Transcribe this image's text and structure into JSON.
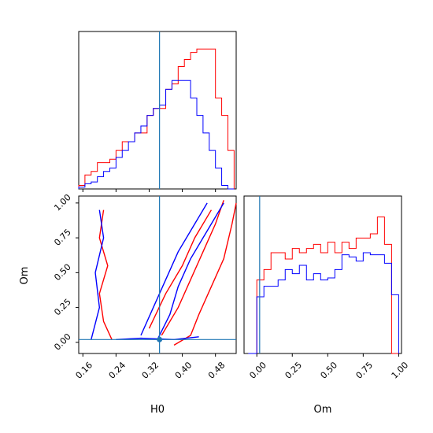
{
  "chart_data": [
    {
      "type": "histogram",
      "panel": "top-left",
      "parameter": "H0",
      "xlim": [
        0.15,
        0.53
      ],
      "bins": [
        0.15,
        0.165,
        0.18,
        0.195,
        0.21,
        0.225,
        0.24,
        0.255,
        0.27,
        0.285,
        0.3,
        0.315,
        0.33,
        0.345,
        0.36,
        0.375,
        0.39,
        0.405,
        0.42,
        0.435,
        0.45,
        0.465,
        0.48,
        0.495,
        0.51,
        0.525
      ],
      "series": [
        {
          "color": "#ff0000",
          "values": [
            2,
            8,
            10,
            15,
            15,
            17,
            22,
            27,
            27,
            32,
            32,
            42,
            46,
            46,
            57,
            60,
            70,
            74,
            78,
            80,
            80,
            80,
            52,
            42,
            22
          ]
        },
        {
          "color": "#0000ff",
          "values": [
            1,
            3,
            4,
            7,
            10,
            12,
            18,
            22,
            27,
            32,
            36,
            42,
            46,
            48,
            57,
            62,
            62,
            62,
            52,
            42,
            32,
            22,
            12,
            2,
            0
          ]
        }
      ],
      "vline": {
        "x": 0.345,
        "color": "#1f77b4"
      },
      "ylim": [
        0,
        90
      ]
    },
    {
      "type": "contour",
      "panel": "bottom-left",
      "xlabel": "H0",
      "ylabel": "Om",
      "xlim": [
        0.15,
        0.53
      ],
      "ylim": [
        -0.08,
        1.05
      ],
      "x_ticks": [
        "0.16",
        "0.24",
        "0.32",
        "0.40",
        "0.48"
      ],
      "x_tick_values": [
        0.16,
        0.24,
        0.32,
        0.4,
        0.48
      ],
      "y_ticks": [
        "0.00",
        "0.25",
        "0.50",
        "0.75",
        "1.00"
      ],
      "y_tick_values": [
        0,
        0.25,
        0.5,
        0.75,
        1
      ],
      "truth": {
        "x": 0.345,
        "y": 0.02,
        "color": "#1f77b4"
      },
      "contours": [
        {
          "color": "#ff0000",
          "points": [
            [
              0.38,
              -0.02
            ],
            [
              0.42,
              0.05
            ],
            [
              0.44,
              0.2
            ],
            [
              0.47,
              0.4
            ],
            [
              0.5,
              0.6
            ],
            [
              0.52,
              0.85
            ],
            [
              0.53,
              1.0
            ]
          ]
        },
        {
          "color": "#ff0000",
          "points": [
            [
              0.35,
              0.05
            ],
            [
              0.39,
              0.25
            ],
            [
              0.42,
              0.45
            ],
            [
              0.45,
              0.65
            ],
            [
              0.48,
              0.85
            ],
            [
              0.5,
              1.02
            ]
          ]
        },
        {
          "color": "#ff0000",
          "points": [
            [
              0.32,
              0.1
            ],
            [
              0.36,
              0.35
            ],
            [
              0.4,
              0.55
            ],
            [
              0.43,
              0.75
            ],
            [
              0.47,
              0.95
            ]
          ]
        },
        {
          "color": "#ff0000",
          "points": [
            [
              0.21,
              0.95
            ],
            [
              0.2,
              0.75
            ],
            [
              0.22,
              0.55
            ],
            [
              0.2,
              0.35
            ],
            [
              0.21,
              0.15
            ],
            [
              0.23,
              0.02
            ]
          ]
        },
        {
          "color": "#0000ff",
          "points": [
            [
              0.34,
              0.02
            ],
            [
              0.37,
              0.2
            ],
            [
              0.39,
              0.4
            ],
            [
              0.42,
              0.6
            ],
            [
              0.46,
              0.8
            ],
            [
              0.5,
              1.0
            ]
          ]
        },
        {
          "color": "#0000ff",
          "points": [
            [
              0.3,
              0.05
            ],
            [
              0.33,
              0.25
            ],
            [
              0.36,
              0.45
            ],
            [
              0.39,
              0.65
            ],
            [
              0.43,
              0.85
            ],
            [
              0.46,
              1.0
            ]
          ]
        },
        {
          "color": "#0000ff",
          "points": [
            [
              0.18,
              0.02
            ],
            [
              0.2,
              0.25
            ],
            [
              0.19,
              0.5
            ],
            [
              0.21,
              0.75
            ],
            [
              0.2,
              0.95
            ]
          ]
        },
        {
          "color": "#0000ff",
          "points": [
            [
              0.24,
              0.02
            ],
            [
              0.3,
              0.03
            ],
            [
              0.38,
              0.02
            ],
            [
              0.44,
              0.04
            ]
          ]
        }
      ]
    },
    {
      "type": "histogram",
      "panel": "bottom-right",
      "parameter": "Om",
      "xlabel": "Om",
      "xlim": [
        -0.09,
        1.02
      ],
      "x_ticks": [
        "0.00",
        "0.25",
        "0.50",
        "0.75",
        "1.00"
      ],
      "x_tick_values": [
        0,
        0.25,
        0.5,
        0.75,
        1
      ],
      "bins": [
        -0.06,
        0.0,
        0.05,
        0.1,
        0.15,
        0.2,
        0.25,
        0.3,
        0.35,
        0.4,
        0.45,
        0.5,
        0.55,
        0.6,
        0.65,
        0.7,
        0.75,
        0.8,
        0.85,
        0.9,
        0.95,
        1.0
      ],
      "series": [
        {
          "color": "#ff0000",
          "values": [
            0,
            35,
            40,
            48,
            48,
            45,
            50,
            48,
            50,
            52,
            48,
            53,
            48,
            53,
            50,
            55,
            55,
            57,
            65,
            52,
            0
          ]
        },
        {
          "color": "#0000ff",
          "values": [
            0,
            27,
            32,
            32,
            35,
            40,
            38,
            42,
            35,
            38,
            35,
            36,
            40,
            47,
            46,
            44,
            48,
            47,
            47,
            43,
            28
          ]
        }
      ],
      "vline": {
        "x": 0.02,
        "color": "#1f77b4"
      },
      "ylim": [
        0,
        75
      ]
    }
  ]
}
